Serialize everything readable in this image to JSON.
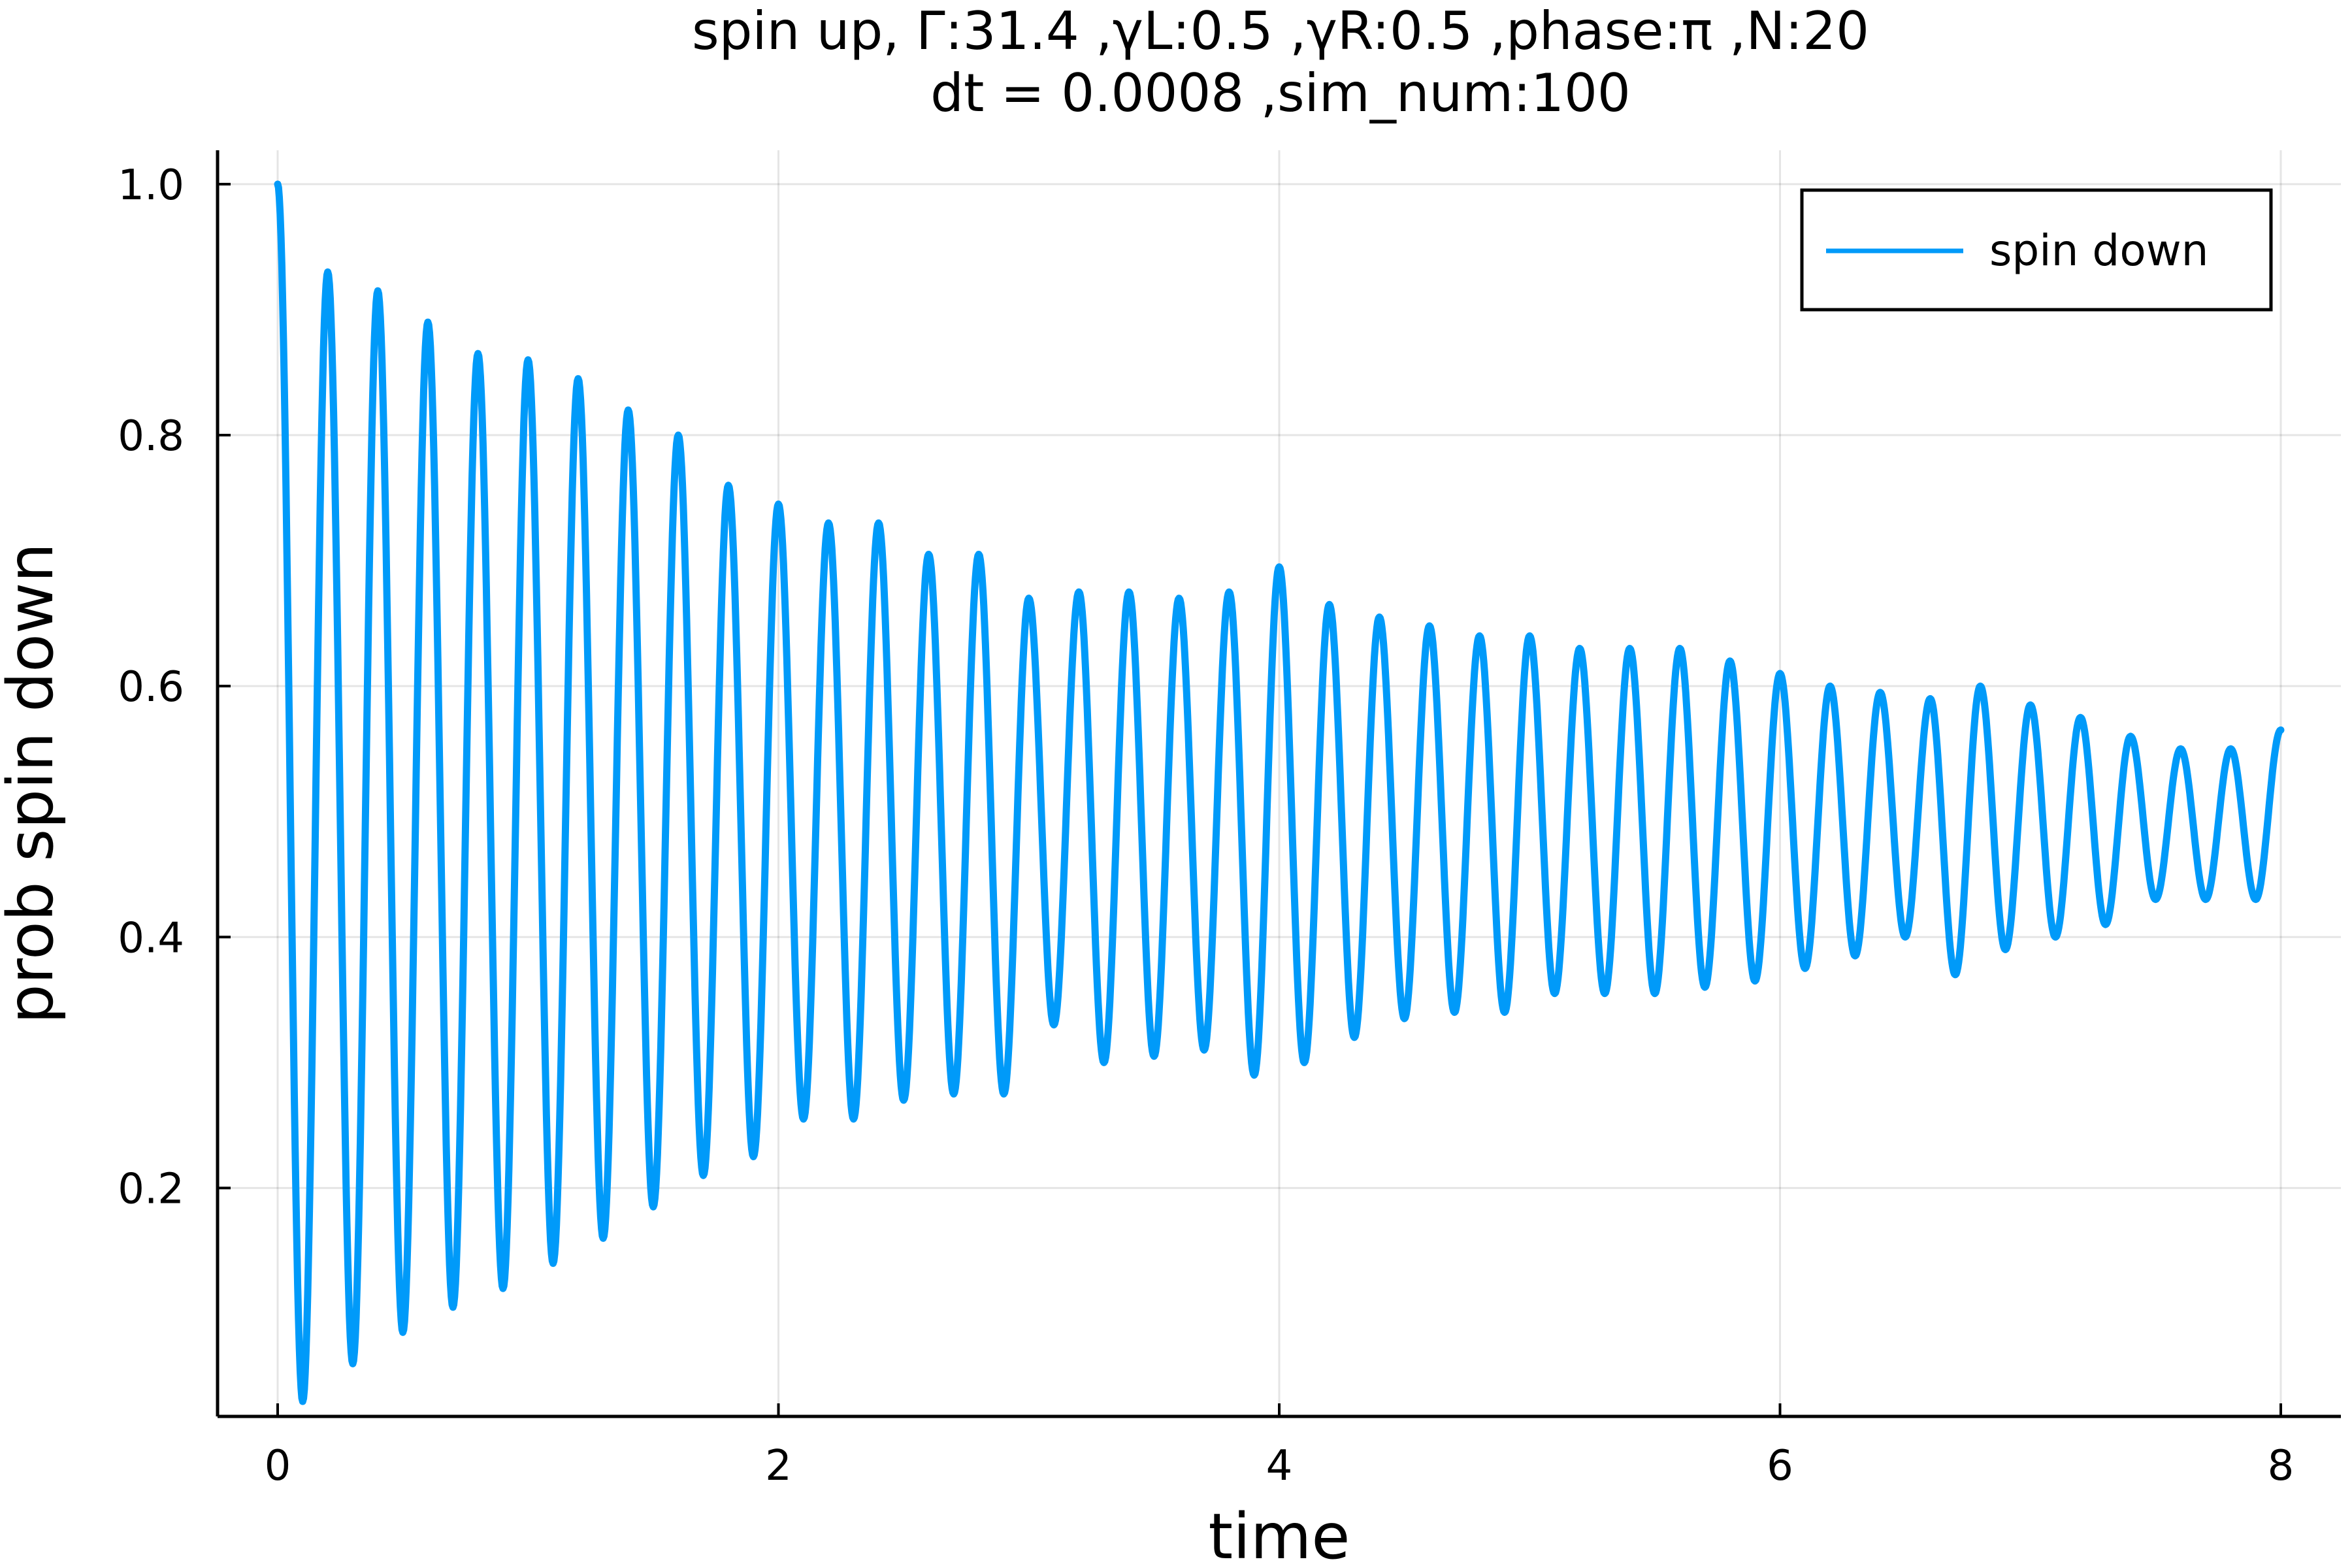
{
  "chart_data": {
    "type": "line",
    "title_line1": "spin up, Γ:31.4 ,γL:0.5 ,γR:0.5 ,phase:π ,N:20",
    "title_line2": "dt = 0.0008 ,sim_num:100",
    "xlabel": "time",
    "ylabel": "prob spin down",
    "xlim": [
      -0.24,
      8.24
    ],
    "ylim": [
      0.018,
      1.027
    ],
    "xticks": [
      0,
      2,
      4,
      6,
      8
    ],
    "xtick_labels": [
      "0",
      "2",
      "4",
      "6",
      "8"
    ],
    "yticks": [
      0.2,
      0.4,
      0.6,
      0.8,
      1.0
    ],
    "ytick_labels": [
      "0.2",
      "0.4",
      "0.6",
      "0.8",
      "1.0"
    ],
    "grid": true,
    "legend_position": "top-right",
    "series": [
      {
        "name": "spin down",
        "color": "#009af9",
        "x_range": [
          0,
          8
        ],
        "period": 0.2,
        "peaks_t": [
          0,
          0.2,
          0.4,
          0.6,
          0.8,
          1.0,
          1.2,
          1.4,
          1.6,
          1.8,
          2.0,
          2.2,
          2.4,
          2.6,
          2.8,
          3.0,
          3.2,
          3.4,
          3.6,
          3.8,
          4.0,
          4.2,
          4.4,
          4.6,
          4.8,
          5.0,
          5.2,
          5.4,
          5.6,
          5.8,
          6.0,
          6.2,
          6.4,
          6.6,
          6.8,
          7.0,
          7.2,
          7.4,
          7.6,
          7.8,
          8.0
        ],
        "peaks": [
          1.0,
          0.93,
          0.915,
          0.89,
          0.865,
          0.86,
          0.845,
          0.82,
          0.8,
          0.76,
          0.745,
          0.73,
          0.73,
          0.705,
          0.705,
          0.67,
          0.675,
          0.675,
          0.67,
          0.675,
          0.695,
          0.665,
          0.655,
          0.648,
          0.64,
          0.64,
          0.63,
          0.63,
          0.63,
          0.62,
          0.61,
          0.6,
          0.595,
          0.59,
          0.6,
          0.585,
          0.575,
          0.56,
          0.55,
          0.55,
          0.565
        ],
        "troughs_t": [
          0.1,
          0.3,
          0.5,
          0.7,
          0.9,
          1.1,
          1.3,
          1.5,
          1.7,
          1.9,
          2.1,
          2.3,
          2.5,
          2.7,
          2.9,
          3.1,
          3.3,
          3.5,
          3.7,
          3.9,
          4.1,
          4.3,
          4.5,
          4.7,
          4.9,
          5.1,
          5.3,
          5.5,
          5.7,
          5.9,
          6.1,
          6.3,
          6.5,
          6.7,
          6.9,
          7.1,
          7.3,
          7.5,
          7.7,
          7.9
        ],
        "troughs": [
          0.03,
          0.06,
          0.085,
          0.105,
          0.12,
          0.14,
          0.16,
          0.185,
          0.21,
          0.225,
          0.255,
          0.255,
          0.27,
          0.275,
          0.275,
          0.33,
          0.3,
          0.305,
          0.31,
          0.29,
          0.3,
          0.32,
          0.335,
          0.34,
          0.34,
          0.355,
          0.355,
          0.355,
          0.36,
          0.365,
          0.375,
          0.385,
          0.4,
          0.37,
          0.39,
          0.4,
          0.41,
          0.43,
          0.43,
          0.43
        ],
        "end_value": 0.49
      }
    ]
  }
}
